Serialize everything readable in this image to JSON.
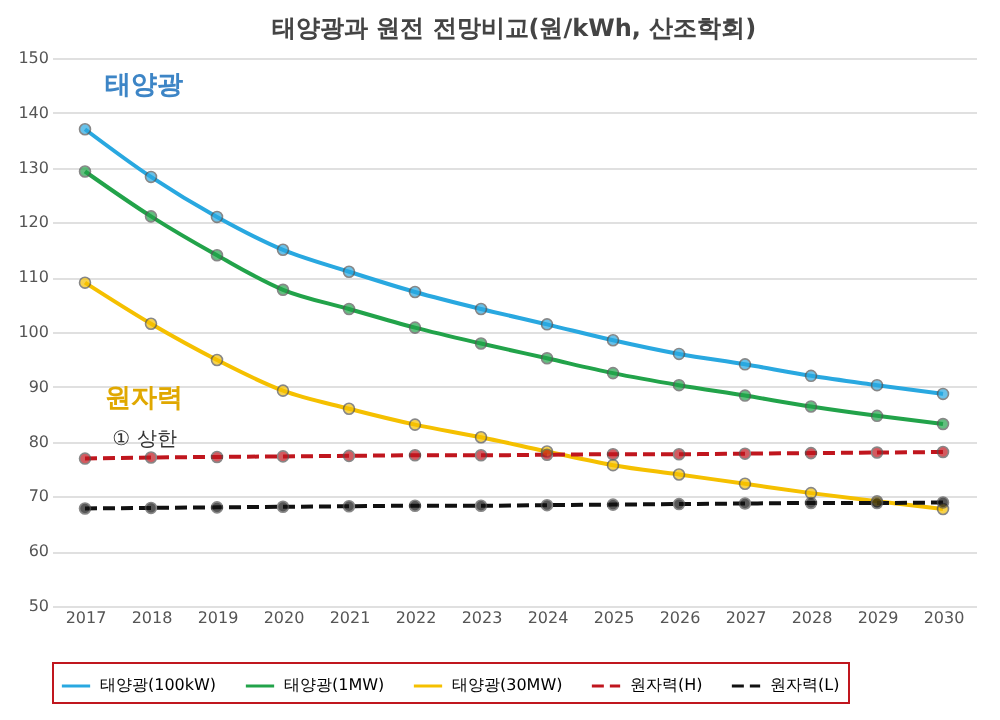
{
  "chart_data": {
    "type": "line",
    "title": "태양광과 원전 전망비교(원/kWh, 산조학회)",
    "categories": [
      "2017",
      "2018",
      "2019",
      "2020",
      "2021",
      "2022",
      "2023",
      "2024",
      "2025",
      "2026",
      "2027",
      "2028",
      "2029",
      "2030"
    ],
    "ylim": [
      50,
      150
    ],
    "yticks": [
      50,
      60,
      70,
      80,
      90,
      100,
      110,
      120,
      130,
      140,
      150
    ],
    "grid": "y",
    "legend": "bottom",
    "marker": "circle",
    "annotations": [
      "태양광",
      "원자력",
      "① 상한"
    ],
    "series": [
      {
        "name": "태양광(100kW)",
        "color": "#29a8e0",
        "line_style": "solid",
        "values": [
          137,
          128.3,
          121,
          115,
          111,
          107.3,
          104.2,
          101.4,
          98.5,
          96,
          94.1,
          92,
          90.3,
          88.7
        ]
      },
      {
        "name": "태양광(1MW)",
        "color": "#22a34a",
        "line_style": "solid",
        "values": [
          129.3,
          121.1,
          114,
          107.7,
          104.2,
          100.8,
          97.9,
          95.2,
          92.5,
          90.3,
          88.4,
          86.4,
          84.7,
          83.2
        ]
      },
      {
        "name": "태양광(30MW)",
        "color": "#f5c000",
        "line_style": "solid",
        "values": [
          109,
          101.5,
          94.9,
          89.3,
          86,
          83.1,
          80.8,
          78.2,
          75.7,
          74,
          72.3,
          70.6,
          69.1,
          67.7
        ]
      },
      {
        "name": "원자력(H)",
        "color": "#c0161e",
        "line_style": "dashed",
        "values": [
          76.9,
          77.1,
          77.2,
          77.3,
          77.4,
          77.5,
          77.5,
          77.6,
          77.7,
          77.7,
          77.8,
          77.9,
          78,
          78.1
        ]
      },
      {
        "name": "원자력(L)",
        "color": "#111111",
        "line_style": "dashed",
        "values": [
          67.8,
          67.9,
          68,
          68.1,
          68.2,
          68.3,
          68.3,
          68.4,
          68.5,
          68.6,
          68.7,
          68.8,
          68.8,
          68.9
        ]
      }
    ]
  }
}
